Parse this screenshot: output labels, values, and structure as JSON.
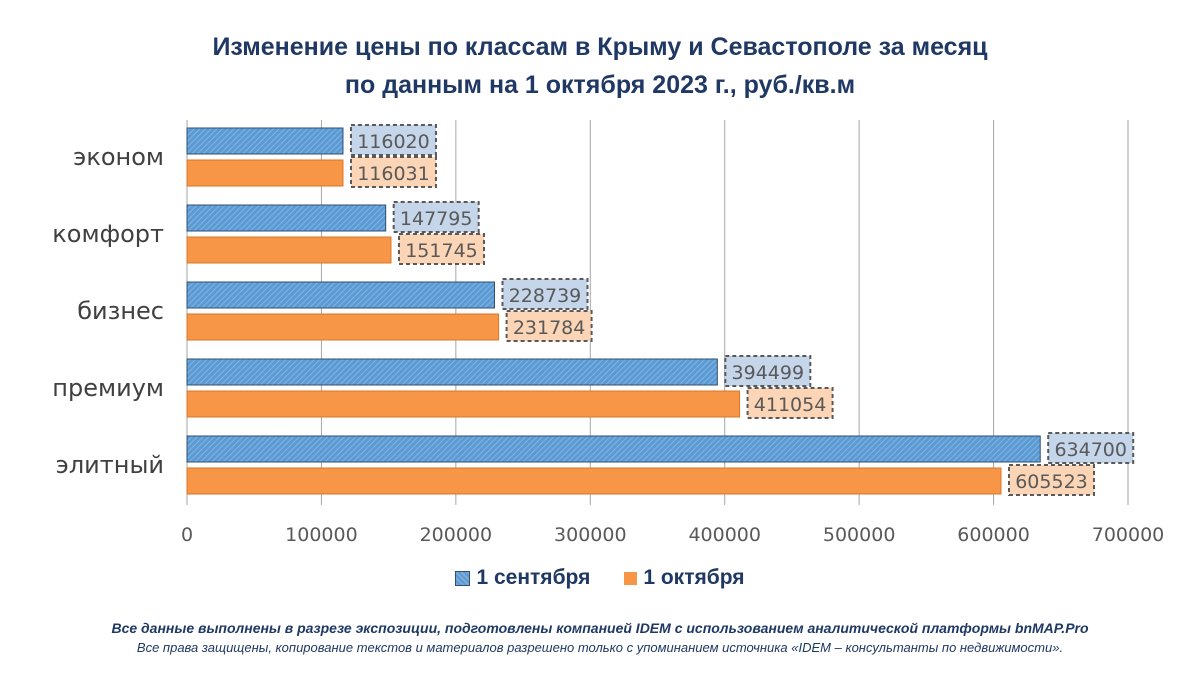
{
  "title": {
    "line1": "Изменение цены по классам в Крыму и Севастополе за месяц",
    "line2": "по данным на 1 октября 2023 г., руб./кв.м"
  },
  "colors": {
    "series_1": "#5b9bd5",
    "series_2": "#f79646",
    "label_bg_1": "#c5d5ea",
    "label_bg_2": "#fbd5b5",
    "text": "#1f3864",
    "axis_text": "#595959",
    "grid": "#a6a6a6"
  },
  "chart_data": {
    "type": "bar",
    "orientation": "horizontal",
    "categories": [
      "эконом",
      "комфорт",
      "бизнес",
      "премиум",
      "элитный"
    ],
    "series": [
      {
        "name": "1 сентября",
        "values": [
          116020,
          147795,
          228739,
          394499,
          634700
        ]
      },
      {
        "name": "1 октября",
        "values": [
          116031,
          151745,
          231784,
          411054,
          605523
        ]
      }
    ],
    "xlim": [
      0,
      700000
    ],
    "xticks": [
      "0",
      "100000",
      "200000",
      "300000",
      "400000",
      "500000",
      "600000",
      "700000"
    ],
    "grid": true,
    "legend": "bottom"
  },
  "footer": {
    "line1": "Все данные выполнены в разрезе экспозиции, подготовлены компанией IDEM с использованием аналитической платформы bnMAP.Pro",
    "line2": "Все права защищены, копирование текстов и материалов разрешено только с упоминанием источника «IDEM – консультанты по недвижимости»."
  }
}
